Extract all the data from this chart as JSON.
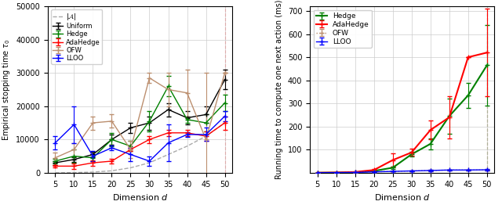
{
  "dims": [
    5,
    10,
    15,
    20,
    25,
    30,
    35,
    40,
    45,
    50
  ],
  "left": {
    "xlabel": "Dimension $d$",
    "ylabel": "Empirical stopping time $\\tau_0$",
    "ylim": [
      0,
      50000
    ],
    "yticks": [
      0,
      10000,
      20000,
      30000,
      40000,
      50000
    ],
    "A_mean": [
      0,
      50,
      200,
      600,
      1500,
      3000,
      5500,
      8000,
      11000,
      15000
    ],
    "uniform_mean": [
      3000,
      4000,
      5500,
      10000,
      13500,
      15000,
      19000,
      16500,
      17500,
      28000
    ],
    "uniform_err": [
      600,
      700,
      800,
      1500,
      1500,
      2000,
      2000,
      2000,
      2500,
      3000
    ],
    "hedge_mean": [
      3500,
      5000,
      4500,
      10000,
      8000,
      15500,
      26000,
      16000,
      15000,
      21000
    ],
    "hedge_err": [
      600,
      2000,
      1000,
      2000,
      1500,
      3000,
      3000,
      1000,
      2500,
      2500
    ],
    "adahedge_mean": [
      2000,
      2000,
      3000,
      3500,
      7000,
      10000,
      12000,
      12000,
      11000,
      15000
    ],
    "adahedge_err": [
      300,
      800,
      800,
      800,
      500,
      1000,
      1000,
      1000,
      1500,
      2000
    ],
    "ofw_mean": [
      4500,
      7000,
      15000,
      15500,
      7000,
      28500,
      25000,
      24000,
      10000,
      30000
    ],
    "ofw_err": [
      1500,
      2000,
      2000,
      2000,
      2500,
      1500,
      5000,
      7000,
      20000,
      0
    ],
    "lloo_mean": [
      9000,
      14500,
      5000,
      7500,
      5500,
      3500,
      9000,
      11500,
      11500,
      17000
    ],
    "lloo_err": [
      2000,
      5500,
      1500,
      800,
      2000,
      1500,
      5500,
      800,
      2000,
      1500
    ]
  },
  "right": {
    "xlabel": "Dimension $d$",
    "ylabel": "Running time to compute one next action (ms)",
    "ylim": [
      0,
      720
    ],
    "yticks": [
      100,
      200,
      300,
      400,
      500,
      600,
      700
    ],
    "dims": [
      5,
      10,
      15,
      20,
      25,
      30,
      35,
      40,
      45,
      50
    ],
    "hedge_mean": [
      0.3,
      0.8,
      2.0,
      8,
      22,
      80,
      125,
      245,
      335,
      465
    ],
    "hedge_err": [
      0.1,
      0.3,
      0.5,
      2,
      4,
      10,
      25,
      75,
      55,
      175
    ],
    "adahedge_mean": [
      0.3,
      1.2,
      3.5,
      12,
      55,
      88,
      185,
      240,
      500,
      520
    ],
    "adahedge_err": [
      0.1,
      0.4,
      1.0,
      5,
      28,
      15,
      40,
      90,
      0,
      190
    ],
    "ofw_mean": [
      0.3,
      0.8,
      1.5,
      4,
      6,
      8,
      10,
      12,
      12,
      12
    ],
    "ofw_err": [
      0.1,
      0.2,
      0.4,
      1,
      1,
      1,
      2,
      2,
      2,
      2
    ],
    "lloo_mean": [
      0.3,
      0.8,
      1.5,
      4,
      6,
      8,
      10,
      12,
      12,
      13
    ],
    "lloo_err": [
      0.1,
      0.2,
      0.4,
      1,
      1,
      1,
      2,
      2,
      2,
      2
    ]
  },
  "colors": {
    "A": "#aaaaaa",
    "uniform": "#000000",
    "hedge": "#008000",
    "adahedge": "#ff0000",
    "ofw": "#bc8f6f",
    "lloo": "#0000ff"
  },
  "vline_left_color": "#ff0000",
  "vline_right_colors": [
    "#ff0000",
    "#008000"
  ]
}
